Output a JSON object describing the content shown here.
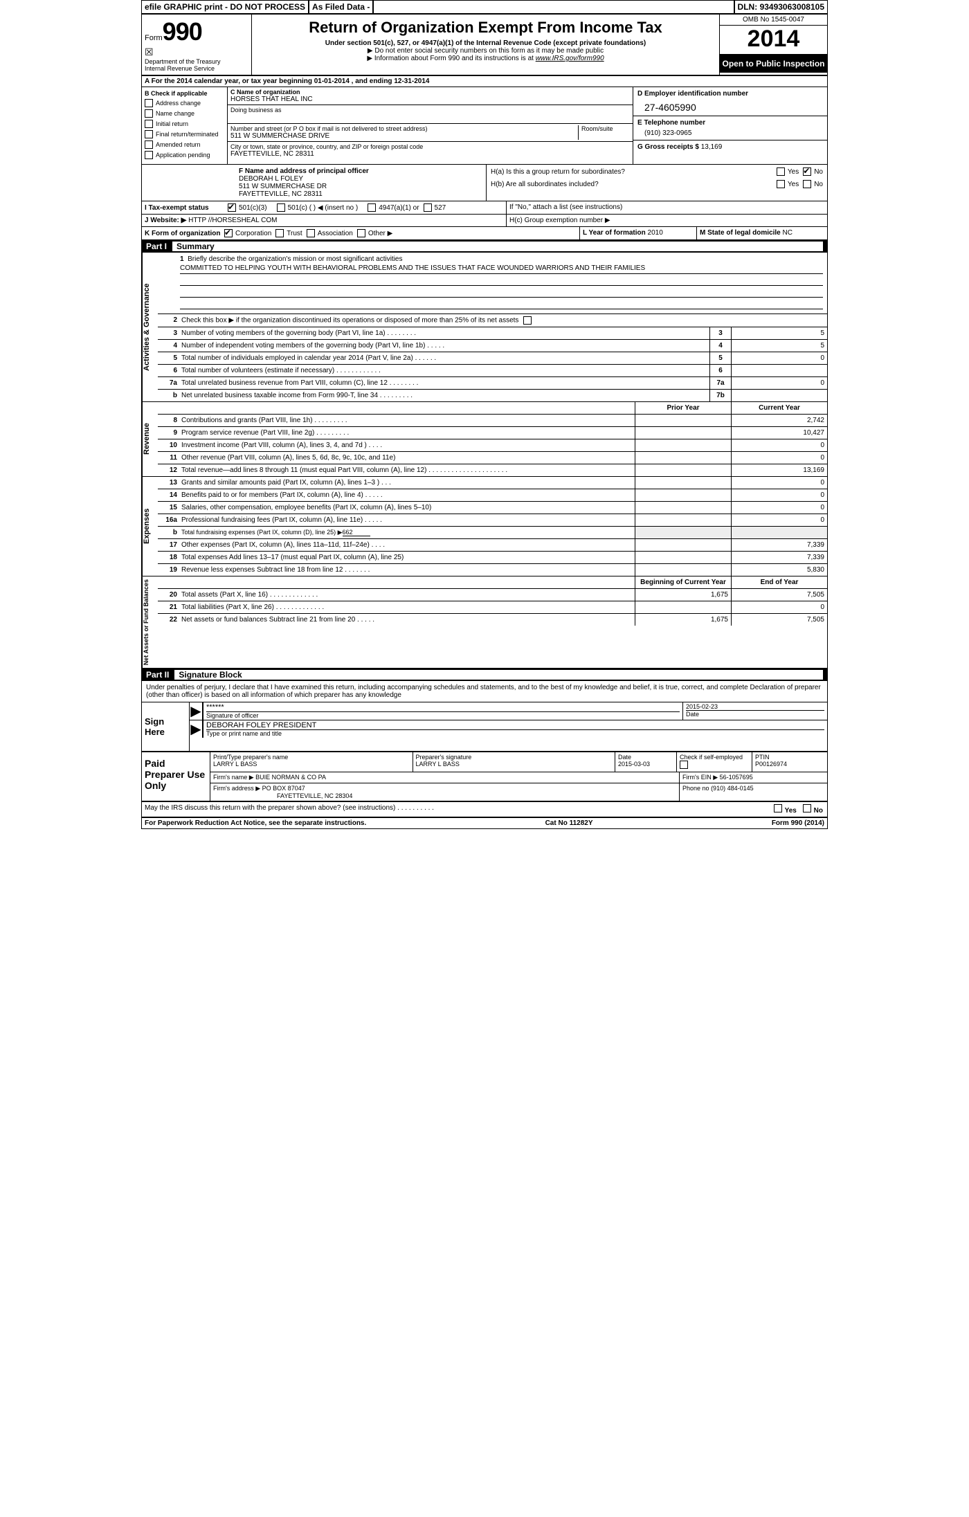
{
  "topbar": {
    "efile": "efile GRAPHIC print - DO NOT PROCESS",
    "asfiled": "As Filed Data -",
    "dln_label": "DLN:",
    "dln": "93493063008105"
  },
  "header": {
    "form_label": "Form",
    "form_num": "990",
    "dept": "Department of the Treasury",
    "irs": "Internal Revenue Service",
    "title": "Return of Organization Exempt From Income Tax",
    "subtitle": "Under section 501(c), 527, or 4947(a)(1) of the Internal Revenue Code (except private foundations)",
    "note1": "▶ Do not enter social security numbers on this form as it may be made public",
    "note2_pre": "▶ Information about Form 990 and its instructions is at ",
    "note2_link": "www.IRS.gov/form990",
    "omb": "OMB No 1545-0047",
    "year": "2014",
    "inspect": "Open to Public Inspection"
  },
  "sectionA": "A  For the 2014 calendar year, or tax year beginning 01-01-2014     , and ending 12-31-2014",
  "colB": {
    "label": "B  Check if applicable",
    "items": [
      "Address change",
      "Name change",
      "Initial return",
      "Final return/terminated",
      "Amended return",
      "Application pending"
    ]
  },
  "colC": {
    "name_label": "C Name of organization",
    "name": "HORSES THAT HEAL INC",
    "dba_label": "Doing business as",
    "addr_label": "Number and street (or P O  box if mail is not delivered to street address)",
    "room_label": "Room/suite",
    "addr": "511 W SUMMERCHASE DRIVE",
    "city_label": "City or town, state or province, country, and ZIP or foreign postal code",
    "city": "FAYETTEVILLE, NC  28311"
  },
  "colD": {
    "ein_label": "D Employer identification number",
    "ein": "27-4605990",
    "phone_label": "E Telephone number",
    "phone": "(910) 323-0965",
    "gross_label": "G Gross receipts $",
    "gross": "13,169"
  },
  "rowF": {
    "label": "F  Name and address of principal officer",
    "name": "DEBORAH L FOLEY",
    "addr1": "511 W SUMMERCHASE DR",
    "addr2": "FAYETTEVILLE, NC  28311"
  },
  "rowH": {
    "ha": "H(a)  Is this a group return for subordinates?",
    "hb": "H(b)  Are all subordinates included?",
    "hb_note": "If \"No,\" attach a list  (see instructions)",
    "hc": "H(c)  Group exemption number ▶",
    "yes": "Yes",
    "no": "No"
  },
  "rowI": {
    "label": "I   Tax-exempt status",
    "opt1": "501(c)(3)",
    "opt2": "501(c) (   ) ◀ (insert no )",
    "opt3": "4947(a)(1) or",
    "opt4": "527"
  },
  "rowJ": {
    "label": "J   Website: ▶",
    "val": "HTTP //HORSESHEAL COM"
  },
  "rowK": {
    "label": "K Form of organization",
    "opts": [
      "Corporation",
      "Trust",
      "Association",
      "Other ▶"
    ],
    "l_label": "L Year of formation",
    "l_val": "2010",
    "m_label": "M State of legal domicile",
    "m_val": "NC"
  },
  "part1": {
    "num": "Part I",
    "title": "Summary"
  },
  "mission": {
    "n": "1",
    "label": "Briefly describe the organization's mission or most significant activities",
    "text": "COMMITTED TO HELPING YOUTH WITH BEHAVIORAL PROBLEMS AND THE ISSUES THAT FACE WOUNDED WARRIORS AND THEIR FAMILIES"
  },
  "line2": {
    "n": "2",
    "text": "Check this box ▶     if the organization discontinued its operations or disposed of more than 25% of its net assets"
  },
  "govLines": [
    {
      "n": "3",
      "d": "Number of voting members of the governing body (Part VI, line 1a)   .    .    .    .    .    .    .    .",
      "ln": "3",
      "v": "5"
    },
    {
      "n": "4",
      "d": "Number of independent voting members of the governing body (Part VI, line 1b)   .    .    .    .    .",
      "ln": "4",
      "v": "5"
    },
    {
      "n": "5",
      "d": "Total number of individuals employed in calendar year 2014 (Part V, line 2a)   .    .    .    .    .    .",
      "ln": "5",
      "v": "0"
    },
    {
      "n": "6",
      "d": "Total number of volunteers (estimate if necessary)   .    .    .    .    .    .    .    .    .    .    .    .",
      "ln": "6",
      "v": ""
    },
    {
      "n": "7a",
      "d": "Total unrelated business revenue from Part VIII, column (C), line 12   .    .    .    .    .    .    .    .",
      "ln": "7a",
      "v": "0"
    },
    {
      "n": "b",
      "d": "Net unrelated business taxable income from Form 990-T, line 34   .    .    .    .    .    .    .    .    .",
      "ln": "7b",
      "v": ""
    }
  ],
  "revHeader": {
    "c1": "Prior Year",
    "c2": "Current Year"
  },
  "revLines": [
    {
      "n": "8",
      "d": "Contributions and grants (Part VIII, line 1h)   .    .    .    .    .    .    .    .    .",
      "c1": "",
      "c2": "2,742"
    },
    {
      "n": "9",
      "d": "Program service revenue (Part VIII, line 2g)   .    .    .    .    .    .    .    .    .",
      "c1": "",
      "c2": "10,427"
    },
    {
      "n": "10",
      "d": "Investment income (Part VIII, column (A), lines 3, 4, and 7d )   .    .    .    .",
      "c1": "",
      "c2": "0"
    },
    {
      "n": "11",
      "d": "Other revenue (Part VIII, column (A), lines 5, 6d, 8c, 9c, 10c, and 11e)",
      "c1": "",
      "c2": "0"
    },
    {
      "n": "12",
      "d": "Total revenue—add lines 8 through 11 (must equal Part VIII, column (A), line 12)   .    .    .    .    .    .    .    .    .    .    .    .    .    .    .    .    .    .    .    .    .",
      "c1": "",
      "c2": "13,169"
    }
  ],
  "expLines": [
    {
      "n": "13",
      "d": "Grants and similar amounts paid (Part IX, column (A), lines 1–3 )   .    .    .",
      "c1": "",
      "c2": "0"
    },
    {
      "n": "14",
      "d": "Benefits paid to or for members (Part IX, column (A), line 4)   .    .    .    .    .",
      "c1": "",
      "c2": "0"
    },
    {
      "n": "15",
      "d": "Salaries, other compensation, employee benefits (Part IX, column (A), lines 5–10)",
      "c1": "",
      "c2": "0"
    },
    {
      "n": "16a",
      "d": "Professional fundraising fees (Part IX, column (A), line 11e)   .    .    .    .    .",
      "c1": "",
      "c2": "0"
    },
    {
      "n": "b",
      "d": "Total fundraising expenses (Part IX, column (D), line 25) ▶",
      "inline": "662",
      "c1": null,
      "c2": null
    },
    {
      "n": "17",
      "d": "Other expenses (Part IX, column (A), lines 11a–11d, 11f–24e)   .    .    .    .",
      "c1": "",
      "c2": "7,339"
    },
    {
      "n": "18",
      "d": "Total expenses  Add lines 13–17 (must equal Part IX, column (A), line 25)",
      "c1": "",
      "c2": "7,339"
    },
    {
      "n": "19",
      "d": "Revenue less expenses  Subtract line 18 from line 12   .    .    .    .    .    .    .",
      "c1": "",
      "c2": "5,830"
    }
  ],
  "balHeader": {
    "c1": "Beginning of Current Year",
    "c2": "End of Year"
  },
  "balLines": [
    {
      "n": "20",
      "d": "Total assets (Part X, line 16)   .    .    .    .    .    .    .    .    .    .    .    .    .",
      "c1": "1,675",
      "c2": "7,505"
    },
    {
      "n": "21",
      "d": "Total liabilities (Part X, line 26)   .    .    .    .    .    .    .    .    .    .    .    .    .",
      "c1": "",
      "c2": "0"
    },
    {
      "n": "22",
      "d": "Net assets or fund balances  Subtract line 21 from line 20   .    .    .    .    .",
      "c1": "1,675",
      "c2": "7,505"
    }
  ],
  "vtabs": {
    "gov": "Activities & Governance",
    "rev": "Revenue",
    "exp": "Expenses",
    "bal": "Net Assets or Fund Balances"
  },
  "part2": {
    "num": "Part II",
    "title": "Signature Block"
  },
  "declare": "Under penalties of perjury, I declare that I have examined this return, including accompanying schedules and statements, and to the best of my knowledge and belief, it is true, correct, and complete  Declaration of preparer (other than officer) is based on all information of which preparer has any knowledge",
  "sign": {
    "label": "Sign Here",
    "stars": "******",
    "sig_label": "Signature of officer",
    "date": "2015-02-23",
    "date_label": "Date",
    "name": "DEBORAH FOLEY PRESIDENT",
    "name_label": "Type or print name and title"
  },
  "prep": {
    "label": "Paid Preparer Use Only",
    "pname_label": "Print/Type preparer's name",
    "pname": "LARRY L BASS",
    "psig_label": "Preparer's signature",
    "psig": "LARRY L BASS",
    "pdate_label": "Date",
    "pdate": "2015-03-03",
    "check_label": "Check      if self-employed",
    "ptin_label": "PTIN",
    "ptin": "P00126974",
    "firm_label": "Firm's name    ▶",
    "firm": "BUIE NORMAN & CO PA",
    "fein_label": "Firm's EIN ▶",
    "fein": "56-1057695",
    "faddr_label": "Firm's address ▶",
    "faddr1": "PO BOX 87047",
    "faddr2": "FAYETTEVILLE, NC  28304",
    "fphone_label": "Phone no",
    "fphone": "(910) 484-0145"
  },
  "discuss": "May the IRS discuss this return with the preparer shown above? (see instructions)   .    .    .    .    .    .    .    .    .    .",
  "footer": {
    "left": "For Paperwork Reduction Act Notice, see the separate instructions.",
    "mid": "Cat No 11282Y",
    "right": "Form 990 (2014)"
  }
}
